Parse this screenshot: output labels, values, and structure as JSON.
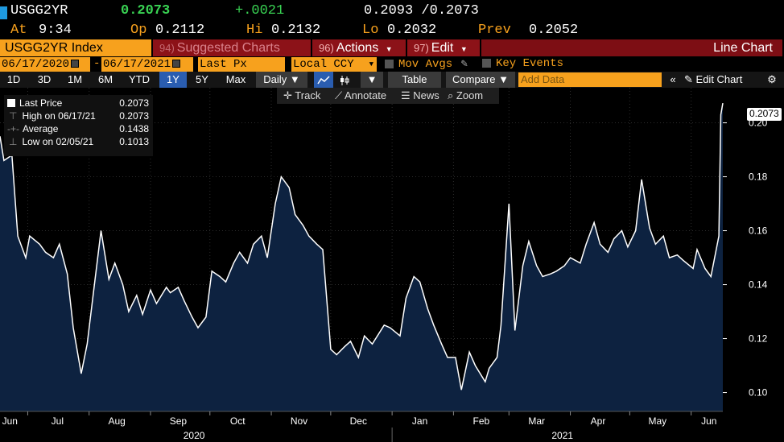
{
  "header": {
    "ticker": "USGG2YR",
    "last": "0.2073",
    "change": "+.0021",
    "bid_ask": "0.2093 /0.2073",
    "at_label": "At",
    "time": "9:34",
    "op_label": "Op",
    "open": "0.2112",
    "hi_label": "Hi",
    "high": "0.2132",
    "lo_label": "Lo",
    "low": "0.2032",
    "prev_label": "Prev",
    "prev": "0.2052"
  },
  "menu": {
    "security": "USGG2YR Index",
    "suggested_num": "94)",
    "suggested": "Suggested Charts",
    "actions_num": "96)",
    "actions": "Actions",
    "edit_num": "97)",
    "edit": "Edit",
    "chart_type": "Line Chart"
  },
  "range": {
    "start": "06/17/2020",
    "dash": "-",
    "end": "06/17/2021",
    "field": "Last Px",
    "currency": "Local CCY",
    "mov_avgs": "Mov Avgs",
    "key_events": "Key Events"
  },
  "toolbar": {
    "periods": [
      "1D",
      "3D",
      "1M",
      "6M",
      "YTD",
      "1Y",
      "5Y",
      "Max"
    ],
    "selected_period": "1Y",
    "frequency": "Daily",
    "table": "Table",
    "compare": "Compare",
    "add_data_placeholder": "Add Data",
    "edit_chart": "Edit Chart"
  },
  "chart_tools": {
    "track": "Track",
    "annotate": "Annotate",
    "news": "News",
    "zoom": "Zoom"
  },
  "legend": {
    "last_price_label": "Last Price",
    "last_price": "0.2073",
    "high_label": "High on 06/17/21",
    "high": "0.2073",
    "average_label": "Average",
    "average": "0.1438",
    "low_label": "Low on 02/05/21",
    "low": "0.1013"
  },
  "last_tag": "0.2073",
  "colors": {
    "bloomberg_orange": "#f7a11d",
    "green": "#39d353",
    "menu_red": "#8c1218",
    "area_fill": "#0d2240",
    "line": "#ffffff"
  },
  "chart_data": {
    "type": "area",
    "ylim": [
      0.093,
      0.213
    ],
    "yticks": [
      0.1,
      0.12,
      0.14,
      0.16,
      0.18,
      0.2
    ],
    "ytick_labels": [
      "0.10",
      "0.12",
      "0.14",
      "0.16",
      "0.18",
      "0.20"
    ],
    "x_months": [
      "Jun",
      "Jul",
      "Aug",
      "Sep",
      "Oct",
      "Nov",
      "Dec",
      "Jan",
      "Feb",
      "Mar",
      "Apr",
      "May",
      "Jun"
    ],
    "x_years": [
      "2020",
      "2021"
    ],
    "x_start": "2020-06-17",
    "x_end": "2021-06-17",
    "series": [
      {
        "dates": [
          "2020-06-17",
          "2020-06-19",
          "2020-06-23",
          "2020-06-26",
          "2020-06-30",
          "2020-07-02",
          "2020-07-07",
          "2020-07-10",
          "2020-07-14",
          "2020-07-17",
          "2020-07-21",
          "2020-07-24",
          "2020-07-28",
          "2020-07-31",
          "2020-08-04",
          "2020-08-07",
          "2020-08-11",
          "2020-08-14",
          "2020-08-18",
          "2020-08-21",
          "2020-08-25",
          "2020-08-28",
          "2020-09-01",
          "2020-09-04",
          "2020-09-09",
          "2020-09-11",
          "2020-09-15",
          "2020-09-18",
          "2020-09-22",
          "2020-09-25",
          "2020-09-29",
          "2020-10-02",
          "2020-10-06",
          "2020-10-09",
          "2020-10-13",
          "2020-10-16",
          "2020-10-20",
          "2020-10-23",
          "2020-10-27",
          "2020-10-30",
          "2020-11-03",
          "2020-11-06",
          "2020-11-10",
          "2020-11-13",
          "2020-11-17",
          "2020-11-20",
          "2020-11-24",
          "2020-11-27",
          "2020-12-01",
          "2020-12-04",
          "2020-12-08",
          "2020-12-11",
          "2020-12-15",
          "2020-12-18",
          "2020-12-22",
          "2020-12-28",
          "2020-12-31",
          "2021-01-05",
          "2021-01-08",
          "2021-01-12",
          "2021-01-15",
          "2021-01-19",
          "2021-01-22",
          "2021-01-26",
          "2021-01-29",
          "2021-02-02",
          "2021-02-05",
          "2021-02-09",
          "2021-02-12",
          "2021-02-17",
          "2021-02-19",
          "2021-02-23",
          "2021-02-25",
          "2021-03-01",
          "2021-03-04",
          "2021-03-08",
          "2021-03-11",
          "2021-03-15",
          "2021-03-18",
          "2021-03-22",
          "2021-03-25",
          "2021-03-29",
          "2021-04-01",
          "2021-04-06",
          "2021-04-09",
          "2021-04-13",
          "2021-04-16",
          "2021-04-20",
          "2021-04-23",
          "2021-04-27",
          "2021-04-30",
          "2021-05-04",
          "2021-05-07",
          "2021-05-11",
          "2021-05-14",
          "2021-05-18",
          "2021-05-21",
          "2021-05-25",
          "2021-05-28",
          "2021-06-02",
          "2021-06-04",
          "2021-06-08",
          "2021-06-11",
          "2021-06-15",
          "2021-06-16",
          "2021-06-17"
        ],
        "values": [
          0.195,
          0.186,
          0.188,
          0.158,
          0.15,
          0.158,
          0.155,
          0.152,
          0.15,
          0.155,
          0.144,
          0.124,
          0.107,
          0.118,
          0.142,
          0.16,
          0.142,
          0.148,
          0.14,
          0.13,
          0.136,
          0.129,
          0.138,
          0.133,
          0.139,
          0.137,
          0.139,
          0.134,
          0.128,
          0.124,
          0.128,
          0.145,
          0.143,
          0.141,
          0.148,
          0.152,
          0.148,
          0.155,
          0.158,
          0.15,
          0.17,
          0.18,
          0.176,
          0.166,
          0.162,
          0.158,
          0.155,
          0.153,
          0.116,
          0.114,
          0.117,
          0.119,
          0.113,
          0.121,
          0.118,
          0.125,
          0.124,
          0.121,
          0.135,
          0.143,
          0.141,
          0.131,
          0.125,
          0.118,
          0.113,
          0.113,
          0.101,
          0.115,
          0.11,
          0.104,
          0.109,
          0.113,
          0.125,
          0.17,
          0.123,
          0.147,
          0.156,
          0.147,
          0.143,
          0.144,
          0.145,
          0.147,
          0.15,
          0.148,
          0.155,
          0.163,
          0.155,
          0.152,
          0.157,
          0.16,
          0.154,
          0.16,
          0.179,
          0.161,
          0.155,
          0.158,
          0.15,
          0.151,
          0.149,
          0.146,
          0.153,
          0.146,
          0.143,
          0.158,
          0.203,
          0.2073
        ]
      }
    ]
  }
}
